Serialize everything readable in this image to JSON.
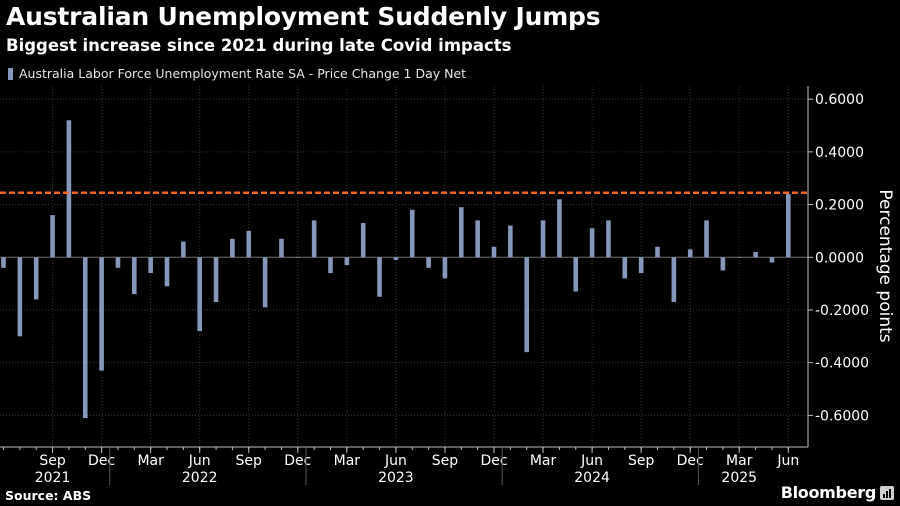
{
  "header": {
    "title": "Australian Unemployment Suddenly Jumps",
    "subtitle": "Biggest increase since 2021 during late Covid impacts"
  },
  "footer": {
    "source": "Source: ABS",
    "brand": "Bloomberg",
    "brand_icon": "bar-chart-icon"
  },
  "colors": {
    "background": "#000000",
    "bar": "#8597ba",
    "reference_line": "#f26522",
    "grid": "#3a3a3a",
    "axis": "#bfbfbf"
  },
  "chart_data": {
    "type": "bar",
    "legend": {
      "position": "top-left",
      "entries": [
        "Australia Labor Force Unemployment Rate SA - Price Change 1 Day Net"
      ]
    },
    "ylabel": "Percentage points",
    "ylim": [
      -0.72,
      0.65
    ],
    "yticks": [
      0.6,
      0.4,
      0.2,
      0.0,
      -0.2,
      -0.4,
      -0.6
    ],
    "ytick_labels": [
      "0.6000",
      "0.4000",
      "0.2000",
      "0.0000",
      "-0.2000",
      "-0.4000",
      "-0.6000"
    ],
    "grid": true,
    "reference_line": {
      "value": 0.245,
      "style": "dashed"
    },
    "x_months": [
      "2021-06",
      "2021-07",
      "2021-08",
      "2021-09",
      "2021-10",
      "2021-11",
      "2021-12",
      "2022-01",
      "2022-02",
      "2022-03",
      "2022-04",
      "2022-05",
      "2022-06",
      "2022-07",
      "2022-08",
      "2022-09",
      "2022-10",
      "2022-11",
      "2022-12",
      "2023-01",
      "2023-02",
      "2023-03",
      "2023-04",
      "2023-05",
      "2023-06",
      "2023-07",
      "2023-08",
      "2023-09",
      "2023-10",
      "2023-11",
      "2023-12",
      "2024-01",
      "2024-02",
      "2024-03",
      "2024-04",
      "2024-05",
      "2024-06",
      "2024-07",
      "2024-08",
      "2024-09",
      "2024-10",
      "2024-11",
      "2024-12",
      "2025-01",
      "2025-02",
      "2025-03",
      "2025-04",
      "2025-05",
      "2025-06"
    ],
    "series": [
      {
        "values": [
          -0.04,
          -0.3,
          -0.16,
          0.16,
          0.52,
          -0.61,
          -0.43,
          -0.04,
          -0.14,
          -0.06,
          -0.11,
          0.06,
          -0.28,
          -0.17,
          0.07,
          0.1,
          -0.19,
          0.07,
          0.0,
          0.14,
          -0.06,
          -0.03,
          0.13,
          -0.15,
          -0.01,
          0.18,
          -0.04,
          -0.08,
          0.19,
          0.14,
          0.04,
          0.12,
          -0.36,
          0.14,
          0.22,
          -0.13,
          0.11,
          0.14,
          -0.08,
          -0.06,
          0.04,
          -0.17,
          0.03,
          0.14,
          -0.05,
          0.0,
          0.02,
          -0.02,
          0.24
        ]
      }
    ],
    "x_tick_labels": [
      "Sep",
      "Dec",
      "Mar",
      "Jun",
      "Sep",
      "Dec",
      "Mar",
      "Jun",
      "Sep",
      "Dec",
      "Mar",
      "Jun",
      "Sep",
      "Dec",
      "Mar",
      "Jun"
    ],
    "x_tick_months": [
      "2021-09",
      "2021-12",
      "2022-03",
      "2022-06",
      "2022-09",
      "2022-12",
      "2023-03",
      "2023-06",
      "2023-09",
      "2023-12",
      "2024-03",
      "2024-06",
      "2024-09",
      "2024-12",
      "2025-03",
      "2025-06"
    ],
    "x_year_labels": [
      "2021",
      "2022",
      "2023",
      "2024",
      "2025"
    ],
    "x_year_months": [
      "2021-09",
      "2022-06",
      "2023-06",
      "2024-06",
      "2025-03"
    ]
  }
}
